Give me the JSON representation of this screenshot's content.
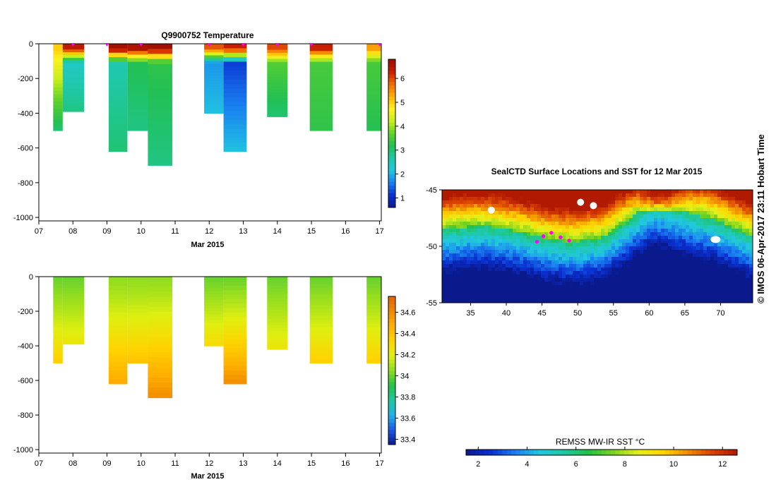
{
  "colors": {
    "temp_scale": [
      "#0a1a8c",
      "#0a2fd0",
      "#1a7ff0",
      "#21c8e0",
      "#1fc8a8",
      "#22c055",
      "#5fd02a",
      "#c8ef1a",
      "#fff020",
      "#ffb000",
      "#f06a00",
      "#c81e00",
      "#9a0d00"
    ],
    "sal_scale": [
      "#0a1a8c",
      "#1a57e6",
      "#22b0e8",
      "#1fc8a0",
      "#22c04a",
      "#8fdc20",
      "#dfef10",
      "#ffd400",
      "#ffb100",
      "#f08a00",
      "#e26400"
    ],
    "sst_scale": [
      "#0a1a8c",
      "#0a2fd0",
      "#1a7ff0",
      "#21c8e0",
      "#1fc8a0",
      "#22c040",
      "#7fd420",
      "#e4ef1a",
      "#ffd400",
      "#f08a00",
      "#d84000",
      "#b01a00"
    ],
    "marker": "#ff00ff"
  },
  "side_label": "© IMOS 06-Apr-2017 23:11 Hobart Time",
  "chart_data": [
    {
      "id": "temperature",
      "type": "heatmap",
      "title": "Q9900752  Temperature",
      "xlabel": "Mar 2015",
      "x_ticks": [
        "07",
        "08",
        "09",
        "10",
        "11",
        "12",
        "13",
        "14",
        "15",
        "16",
        "17"
      ],
      "x_range_days": [
        7,
        17.05
      ],
      "ylim": [
        -1020,
        0
      ],
      "y_ticks": [
        "0",
        "-200",
        "-400",
        "-600",
        "-800",
        "-1000"
      ],
      "y_tick_values": [
        0,
        -200,
        -400,
        -600,
        -800,
        -1000
      ],
      "colorbar": {
        "min": 0.6,
        "max": 6.8,
        "ticks": [
          "1",
          "2",
          "3",
          "4",
          "5",
          "6"
        ],
        "tick_values": [
          1,
          2,
          3,
          4,
          5,
          6
        ]
      },
      "surface_markers_day": [
        8.0,
        9.0,
        10.0,
        12.0,
        13.0,
        14.0,
        15.0,
        17.0
      ],
      "profiles": [
        {
          "x0": 7.42,
          "x1": 7.7,
          "depth": 500,
          "top": 5.0,
          "mid": 4.6,
          "deep": 3.0
        },
        {
          "x0": 7.7,
          "x1": 8.33,
          "depth": 390,
          "top": 6.4,
          "mid": 2.4,
          "deep": 2.9
        },
        {
          "x0": 9.05,
          "x1": 9.6,
          "depth": 620,
          "top": 6.7,
          "mid": 2.6,
          "deep": 3.0
        },
        {
          "x0": 9.6,
          "x1": 10.2,
          "depth": 500,
          "top": 6.6,
          "mid": 3.2,
          "deep": 2.9
        },
        {
          "x0": 10.2,
          "x1": 10.92,
          "depth": 700,
          "top": 6.7,
          "mid": 3.3,
          "deep": 2.9
        },
        {
          "x0": 11.85,
          "x1": 12.42,
          "depth": 400,
          "top": 5.9,
          "mid": 1.8,
          "deep": 2.1
        },
        {
          "x0": 12.42,
          "x1": 13.1,
          "depth": 620,
          "top": 6.3,
          "mid": 1.2,
          "deep": 2.1
        },
        {
          "x0": 13.7,
          "x1": 14.3,
          "depth": 420,
          "top": 6.0,
          "mid": 3.6,
          "deep": 3.0
        },
        {
          "x0": 14.95,
          "x1": 15.62,
          "depth": 500,
          "top": 6.3,
          "mid": 3.5,
          "deep": 3.3
        },
        {
          "x0": 16.62,
          "x1": 17.05,
          "depth": 500,
          "top": 5.4,
          "mid": 3.5,
          "deep": 3.2
        }
      ]
    },
    {
      "id": "salinity",
      "type": "heatmap",
      "title": "",
      "xlabel": "Mar 2015",
      "x_ticks": [
        "07",
        "08",
        "09",
        "10",
        "11",
        "12",
        "13",
        "14",
        "15",
        "16",
        "17"
      ],
      "x_range_days": [
        7,
        17.05
      ],
      "ylim": [
        -1020,
        0
      ],
      "y_ticks": [
        "0",
        "-200",
        "-400",
        "-600",
        "-800",
        "-1000"
      ],
      "y_tick_values": [
        0,
        -200,
        -400,
        -600,
        -800,
        -1000
      ],
      "colorbar": {
        "min": 33.35,
        "max": 34.75,
        "ticks": [
          "33.4",
          "33.6",
          "33.8",
          "34",
          "34.2",
          "34.4",
          "34.6"
        ],
        "tick_values": [
          33.4,
          33.6,
          33.8,
          34.0,
          34.2,
          34.4,
          34.6
        ]
      },
      "profiles": [
        {
          "x0": 7.42,
          "x1": 7.7,
          "depth": 500,
          "top": 34.0,
          "deep": 34.35
        },
        {
          "x0": 7.7,
          "x1": 8.33,
          "depth": 390,
          "top": 34.0,
          "deep": 34.25
        },
        {
          "x0": 9.05,
          "x1": 9.6,
          "depth": 620,
          "top": 34.05,
          "deep": 34.5
        },
        {
          "x0": 9.6,
          "x1": 10.2,
          "depth": 500,
          "top": 34.05,
          "deep": 34.4
        },
        {
          "x0": 10.2,
          "x1": 10.92,
          "depth": 700,
          "top": 34.05,
          "deep": 34.6
        },
        {
          "x0": 11.85,
          "x1": 12.42,
          "depth": 400,
          "top": 34.0,
          "deep": 34.3
        },
        {
          "x0": 12.42,
          "x1": 13.1,
          "depth": 620,
          "top": 34.0,
          "deep": 34.6
        },
        {
          "x0": 13.7,
          "x1": 14.3,
          "depth": 420,
          "top": 34.0,
          "deep": 34.25
        },
        {
          "x0": 14.95,
          "x1": 15.62,
          "depth": 500,
          "top": 34.0,
          "deep": 34.35
        },
        {
          "x0": 16.62,
          "x1": 17.05,
          "depth": 500,
          "top": 34.0,
          "deep": 34.35
        }
      ]
    },
    {
      "id": "sst_map",
      "type": "heatmap",
      "title": "SealCTD Surface Locations and SST for 12 Mar 2015",
      "lon_range": [
        31,
        74.5
      ],
      "lat_range": [
        -55,
        -45
      ],
      "x_ticks": [
        "35",
        "40",
        "45",
        "50",
        "55",
        "60",
        "65",
        "70"
      ],
      "x_tick_values": [
        35,
        40,
        45,
        50,
        55,
        60,
        65,
        70
      ],
      "y_ticks": [
        "-45",
        "-50",
        "-55"
      ],
      "y_tick_values": [
        -45,
        -50,
        -55
      ],
      "colorbar": {
        "label": "REMSS MW-IR SST °C",
        "min": 1.5,
        "max": 12.6,
        "ticks": [
          "2",
          "4",
          "6",
          "8",
          "10",
          "12"
        ],
        "tick_values": [
          2,
          4,
          6,
          8,
          10,
          12
        ]
      },
      "locations": [
        {
          "lon": 44.3,
          "lat": -49.6
        },
        {
          "lon": 45.2,
          "lat": -49.1
        },
        {
          "lon": 46.3,
          "lat": -48.8
        },
        {
          "lon": 47.6,
          "lat": -49.2
        },
        {
          "lon": 48.8,
          "lat": -49.5
        }
      ]
    }
  ]
}
